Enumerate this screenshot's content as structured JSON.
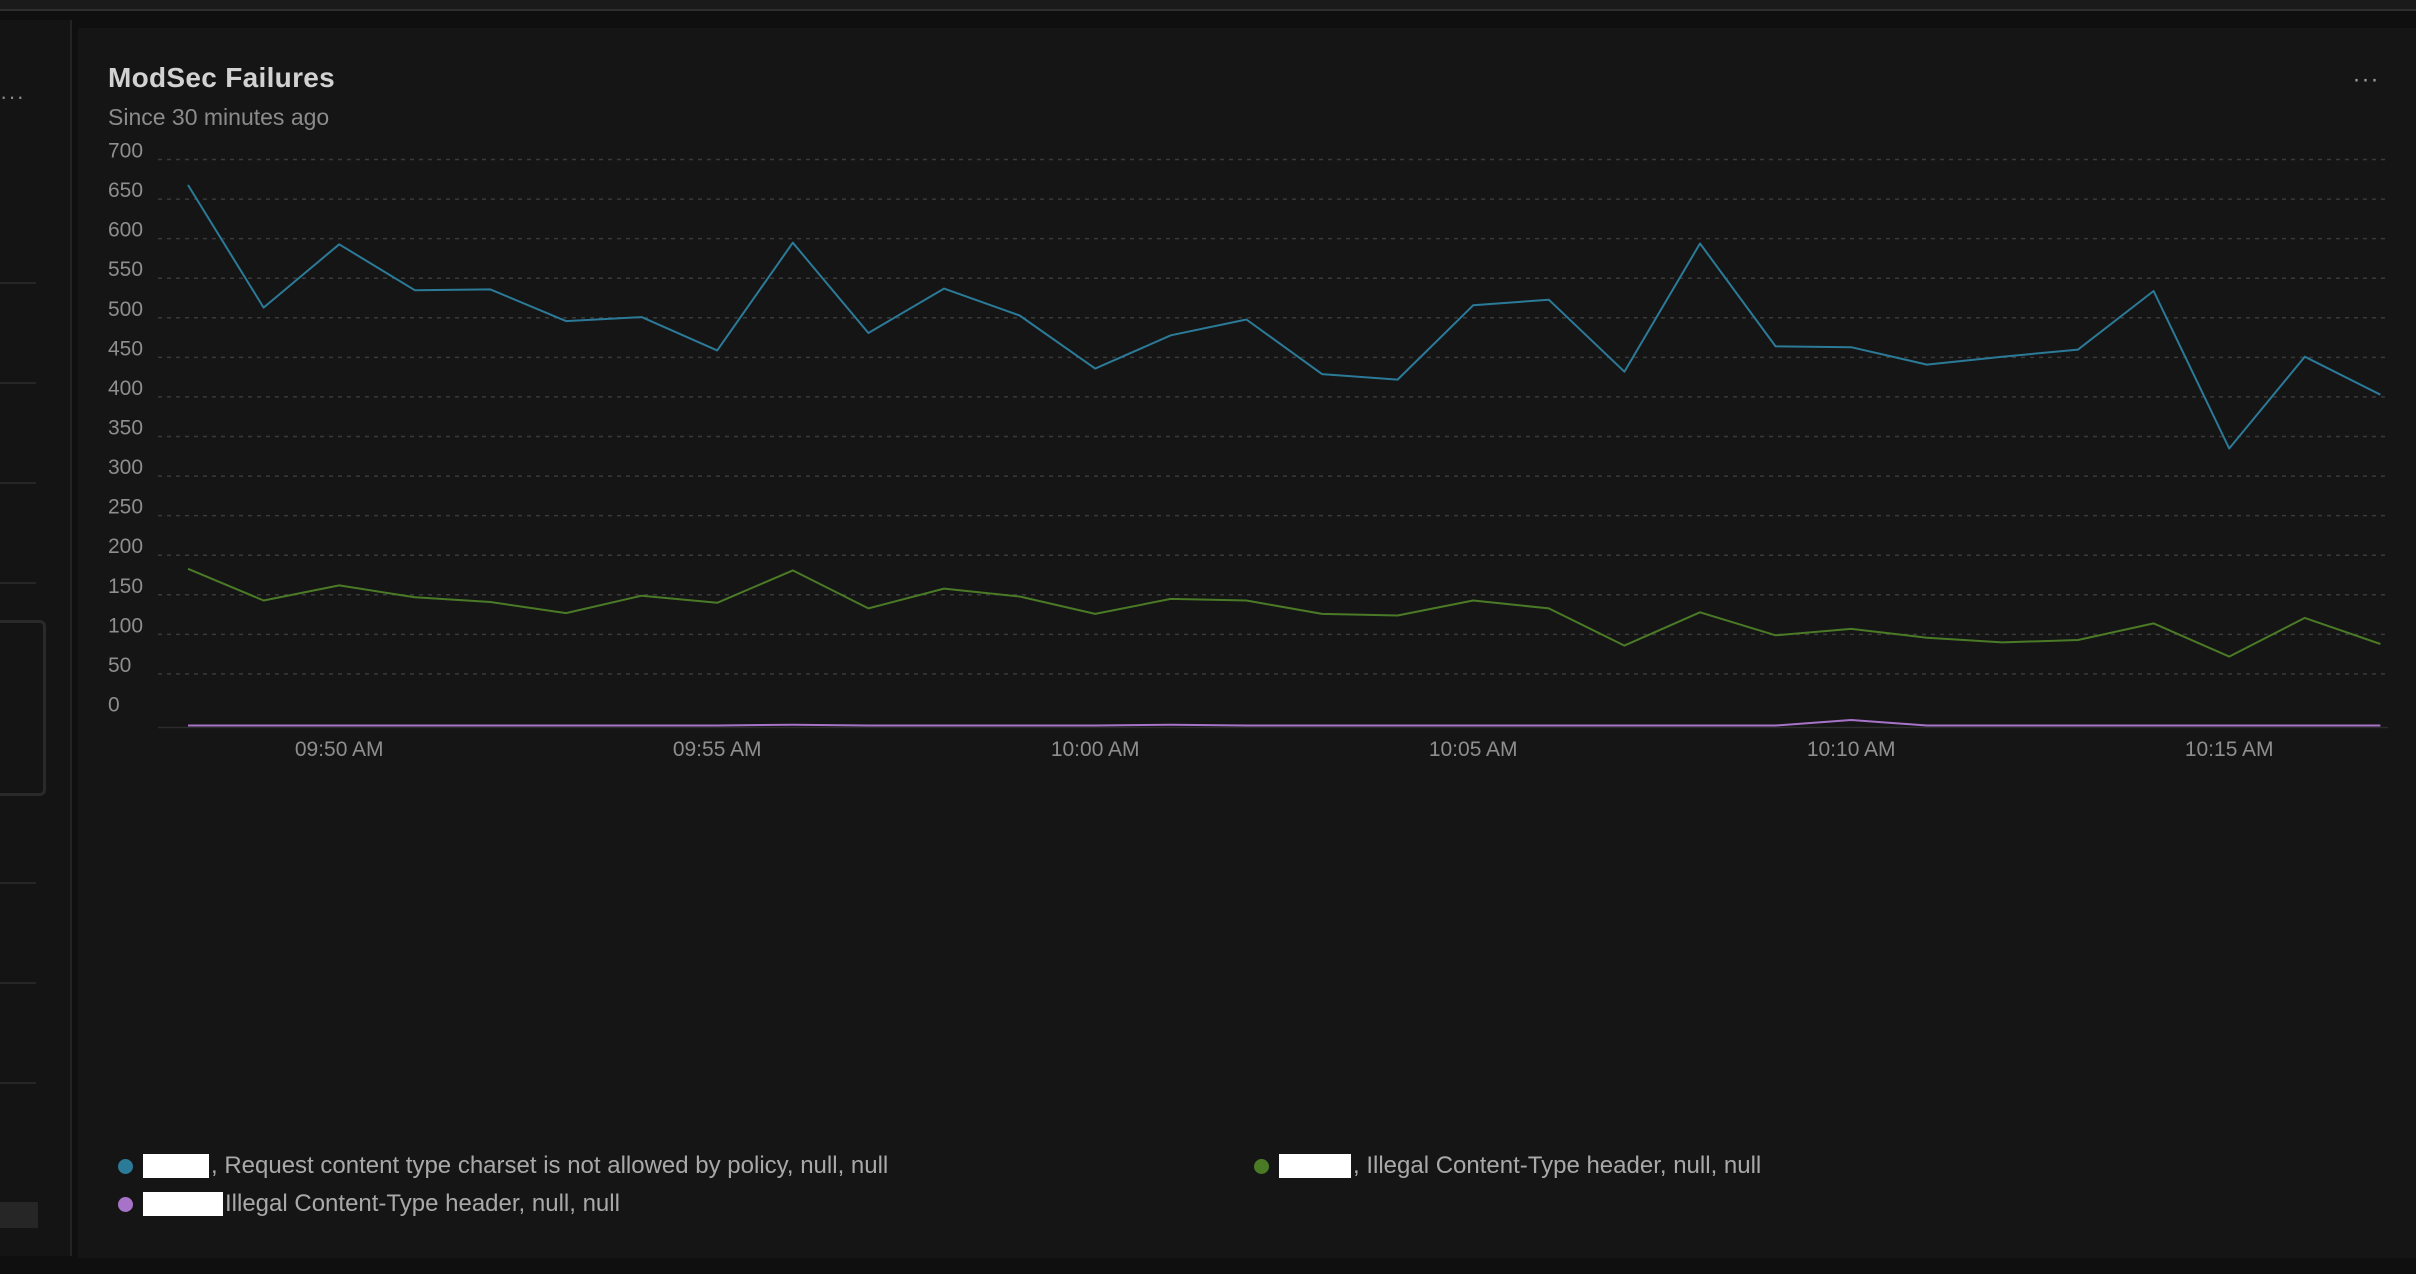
{
  "widget": {
    "title": "ModSec Failures",
    "subtitle": "Since 30 minutes ago",
    "menu_label": "···",
    "side_menu_label": "···"
  },
  "colors": {
    "background": "#151515",
    "grid": "#3a3a3a",
    "axis_text": "#8e8e8e"
  },
  "chart_data": {
    "type": "line",
    "title": "ModSec Failures",
    "subtitle": "Since 30 minutes ago",
    "x": [
      "09:48",
      "09:49",
      "09:50",
      "09:51",
      "09:52",
      "09:53",
      "09:54",
      "09:55",
      "09:56",
      "09:57",
      "09:58",
      "09:59",
      "10:00",
      "10:01",
      "10:02",
      "10:03",
      "10:04",
      "10:05",
      "10:06",
      "10:07",
      "10:08",
      "10:09",
      "10:10",
      "10:11",
      "10:12",
      "10:13",
      "10:14",
      "10:15",
      "10:16",
      "10:17"
    ],
    "x_tick_labels": [
      "09:50 AM",
      "09:55 AM",
      "10:00 AM",
      "10:05 AM",
      "10:10 AM",
      "10:15 AM"
    ],
    "x_tick_positions": [
      "09:50",
      "09:55",
      "10:00",
      "10:05",
      "10:10",
      "10:15"
    ],
    "y_ticks": [
      0,
      50,
      100,
      150,
      200,
      250,
      300,
      350,
      400,
      450,
      500,
      550,
      600,
      650,
      700
    ],
    "ylim": [
      0,
      700
    ],
    "grid": true,
    "legend_position": "bottom",
    "series": [
      {
        "name": ", Request content type charset is not allowed by policy, null, null",
        "color": "#2b7a98",
        "values": [
          683,
          528,
          608,
          550,
          551,
          511,
          516,
          474,
          610,
          496,
          552,
          518,
          451,
          493,
          513,
          444,
          437,
          531,
          538,
          447,
          609,
          479,
          478,
          456,
          466,
          475,
          549,
          350,
          466,
          418
        ]
      },
      {
        "name": ", Illegal Content-Type header, null, null",
        "color": "#4a7a26",
        "values": [
          198,
          158,
          177,
          162,
          156,
          142,
          164,
          155,
          196,
          148,
          173,
          163,
          141,
          160,
          158,
          141,
          139,
          158,
          148,
          101,
          143,
          114,
          122,
          111,
          105,
          108,
          129,
          87,
          136,
          103
        ]
      },
      {
        "name": "Illegal Content-Type header, null, null",
        "color": "#a673c9",
        "values": [
          0,
          0,
          0,
          0,
          0,
          0,
          0,
          0,
          1,
          0,
          0,
          0,
          0,
          1,
          0,
          0,
          0,
          0,
          0,
          0,
          0,
          0,
          7,
          0,
          0,
          0,
          0,
          0,
          0,
          0
        ]
      }
    ]
  }
}
